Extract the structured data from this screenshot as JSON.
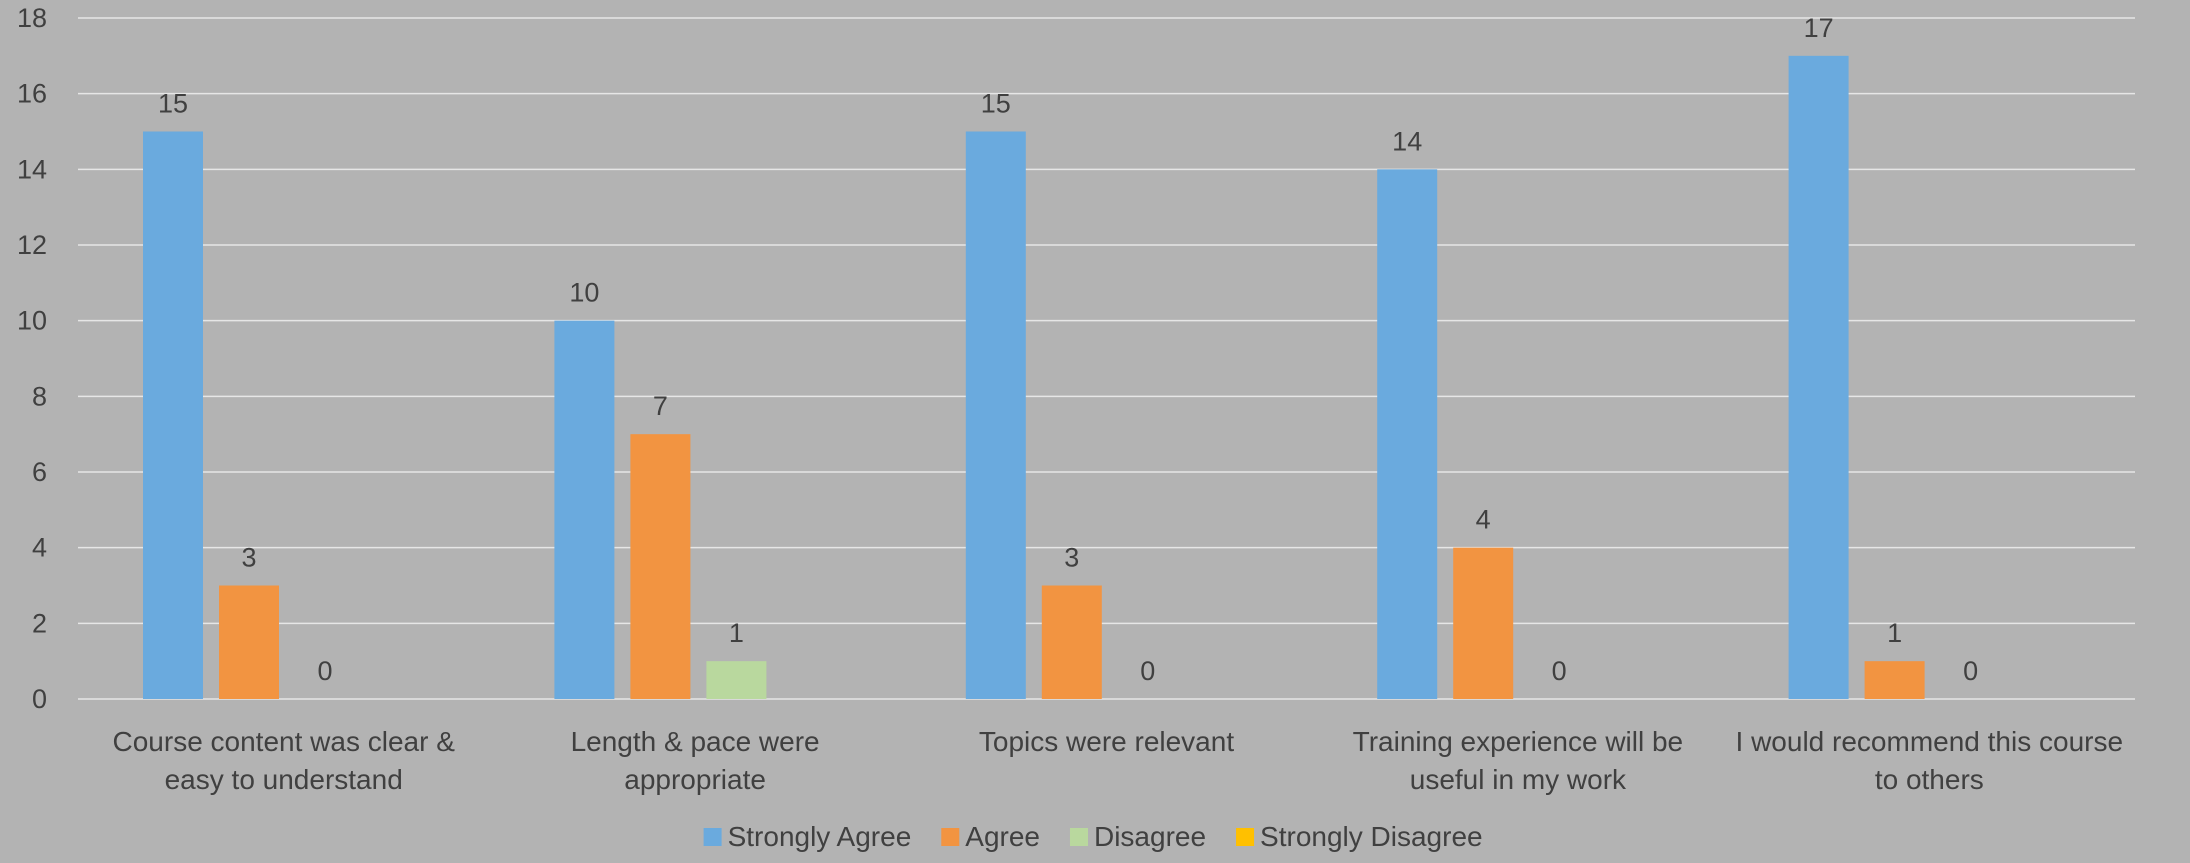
{
  "chart_data": {
    "type": "bar",
    "title": "",
    "xlabel": "",
    "ylabel": "",
    "ylim": [
      0,
      18
    ],
    "y_ticks": [
      0,
      2,
      4,
      6,
      8,
      10,
      12,
      14,
      16,
      18
    ],
    "grid": true,
    "legend_position": "bottom",
    "categories": [
      [
        "Course content was clear &",
        "easy to understand"
      ],
      [
        "Length & pace were",
        "appropriate"
      ],
      [
        "Topics were relevant"
      ],
      [
        "Training experience will be",
        "useful in my work"
      ],
      [
        "I would recommend this course",
        "to others"
      ]
    ],
    "series": [
      {
        "name": "Strongly Agree",
        "color": "#6aaade",
        "values": [
          15,
          10,
          15,
          14,
          17
        ],
        "labels": [
          "15",
          "10",
          "15",
          "14",
          "17"
        ]
      },
      {
        "name": "Agree",
        "color": "#f29441",
        "values": [
          3,
          7,
          3,
          4,
          1
        ],
        "labels": [
          "3",
          "7",
          "3",
          "4",
          "1"
        ]
      },
      {
        "name": "Disagree",
        "color": "#b9d89e",
        "values": [
          0,
          1,
          0,
          0,
          0
        ],
        "labels": [
          "0",
          "1",
          "0",
          "0",
          "0"
        ]
      },
      {
        "name": "Strongly Disagree",
        "color": "#ffc000",
        "values": [
          0,
          0,
          0,
          0,
          0
        ],
        "labels": [
          "",
          "",
          "",
          "",
          ""
        ]
      }
    ],
    "colors": {
      "background": "#b3b3b3",
      "gridline": "#e6e6e6",
      "text": "#404040"
    }
  }
}
